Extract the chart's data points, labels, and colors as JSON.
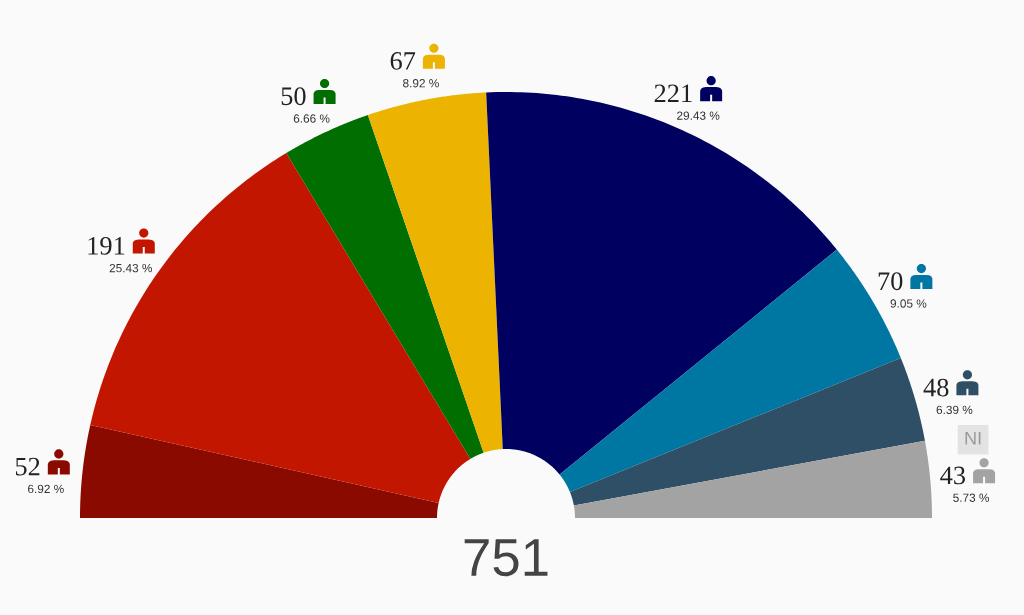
{
  "chart_data": {
    "type": "donut",
    "title": "751",
    "categories": [
      null,
      null,
      null,
      null,
      null,
      null,
      null,
      "NI"
    ],
    "values": [
      52,
      191,
      50,
      67,
      221,
      70,
      48,
      43
    ],
    "colors": [
      "#8a0a00",
      "#c21600",
      "#006e00",
      "#ecb400",
      "#000060",
      "#0077a3",
      "#2e4f66",
      "#a3a3a3"
    ],
    "data_labels": true,
    "annotations": [
      "6.92 %",
      "25.43 %",
      "6.66 %",
      "8.92 %",
      "29.43 %",
      "9.05 %",
      "6.39 %",
      "5.73 %"
    ]
  }
}
